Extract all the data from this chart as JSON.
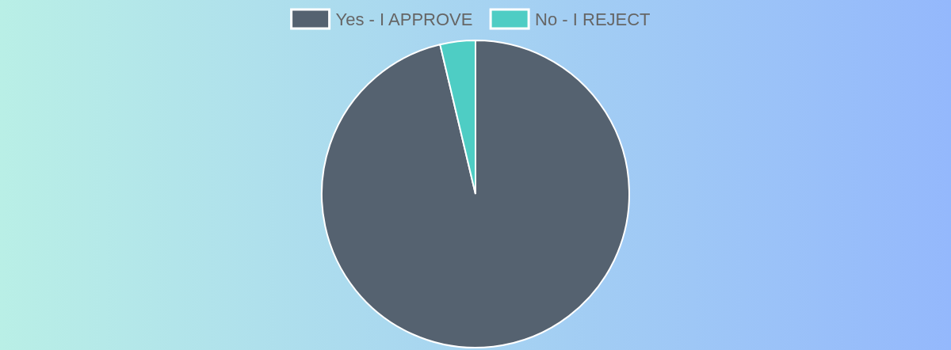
{
  "chart_data": {
    "type": "pie",
    "categories": [
      "Yes - I APPROVE",
      "No - I REJECT"
    ],
    "values": [
      96.3,
      3.7
    ],
    "colors": [
      "#556270",
      "#4ecdc4"
    ],
    "legend": "top"
  }
}
